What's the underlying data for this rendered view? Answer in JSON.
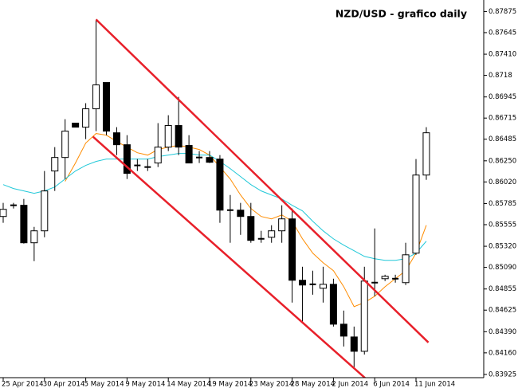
{
  "chart_data": {
    "type": "candlestick",
    "title": "NZD/USD - grafico daily",
    "categories": [
      "25 Apr 2014",
      null,
      null,
      null,
      "30 Apr 2014",
      null,
      null,
      null,
      "5 May 2014",
      null,
      null,
      null,
      "9 May 2014",
      null,
      null,
      null,
      "14 May 2014",
      null,
      null,
      null,
      "19 May 2014",
      null,
      null,
      null,
      "23 May 2014",
      null,
      null,
      null,
      "28 May 2014",
      null,
      null,
      null,
      "2 Jun 2014",
      null,
      null,
      null,
      "6 Jun 2014",
      null,
      null,
      null,
      "11 Jun 2014",
      null
    ],
    "open": [
      0.85644,
      0.85766,
      0.85766,
      0.85358,
      0.85488,
      0.86139,
      0.86286,
      0.8666,
      0.86616,
      0.86816,
      0.87102,
      0.86555,
      0.86425,
      0.862,
      0.86182,
      0.86226,
      0.86399,
      0.86634,
      0.86417,
      0.86286,
      0.86286,
      0.86269,
      0.85713,
      0.85713,
      0.85644,
      0.85401,
      0.85418,
      0.85488,
      0.85618,
      0.8495,
      0.84906,
      0.84863,
      0.84906,
      0.84472,
      0.84333,
      0.84177,
      0.84924,
      0.84967,
      0.84967,
      0.84924,
      0.85245,
      0.86095
    ],
    "high": [
      0.85792,
      0.85792,
      0.85835,
      0.85531,
      0.86139,
      0.86399,
      0.86703,
      0.8666,
      0.86877,
      0.87788,
      0.87102,
      0.86616,
      0.86529,
      0.86269,
      0.86269,
      0.8666,
      0.86746,
      0.86946,
      0.86529,
      0.86356,
      0.86356,
      0.86312,
      0.85878,
      0.85792,
      0.85792,
      0.85488,
      0.85549,
      0.85766,
      0.85731,
      0.85097,
      0.85054,
      0.85097,
      0.84967,
      0.8462,
      0.84446,
      0.85097,
      0.85514,
      0.8501,
      0.8501,
      0.85358,
      0.86269,
      0.86616
    ],
    "low": [
      0.85575,
      0.85731,
      0.85349,
      0.85158,
      0.85418,
      0.85922,
      0.86052,
      0.86616,
      0.86486,
      0.86573,
      0.86529,
      0.86312,
      0.86052,
      0.86139,
      0.86139,
      0.86182,
      0.86356,
      0.86312,
      0.86226,
      0.86226,
      0.86226,
      0.85575,
      0.85358,
      0.85444,
      0.85358,
      0.85358,
      0.85358,
      0.85358,
      0.84707,
      0.8449,
      0.84793,
      0.84707,
      0.84446,
      0.84229,
      0.83995,
      0.84142,
      0.84776,
      0.84941,
      0.84924,
      0.84898,
      0.85227,
      0.86043
    ],
    "close": [
      0.85722,
      0.85766,
      0.85358,
      0.85488,
      0.85922,
      0.86286,
      0.86573,
      0.86616,
      0.86816,
      0.87076,
      0.86573,
      0.86425,
      0.86113,
      0.862,
      0.86182,
      0.86399,
      0.86634,
      0.86399,
      0.86226,
      0.86286,
      0.86234,
      0.85713,
      0.85713,
      0.85644,
      0.85384,
      0.85401,
      0.85488,
      0.85618,
      0.8495,
      0.84898,
      0.84906,
      0.84906,
      0.84472,
      0.84342,
      0.84177,
      0.84941,
      0.84924,
      0.84993,
      0.84967,
      0.85227,
      0.86095,
      0.86555
    ],
    "series": [
      {
        "color": "#ff8c00",
        "values": [
          null,
          null,
          null,
          null,
          null,
          null,
          0.86026,
          0.86226,
          0.86443,
          0.86547,
          0.86529,
          0.8646,
          0.86399,
          0.86338,
          0.86312,
          0.86373,
          0.86399,
          0.86417,
          0.86399,
          0.86373,
          0.86312,
          0.86182,
          0.86052,
          0.85878,
          0.85731,
          0.85644,
          0.85618,
          0.85661,
          0.85592,
          0.85401,
          0.85245,
          0.85141,
          0.85054,
          0.8488,
          0.84663,
          0.84707,
          0.84776,
          0.8488,
          0.84967,
          0.85054,
          0.85245,
          0.85549
        ]
      },
      {
        "color": "#20c8d8",
        "values": [
          0.85991,
          0.85948,
          0.85922,
          0.85896,
          0.85922,
          0.85965,
          0.86052,
          0.86139,
          0.862,
          0.86243,
          0.86269,
          0.86269,
          0.86269,
          0.86269,
          0.86269,
          0.86295,
          0.86312,
          0.8633,
          0.8633,
          0.86312,
          0.86312,
          0.86243,
          0.86165,
          0.86078,
          0.85991,
          0.85922,
          0.85878,
          0.85835,
          0.85766,
          0.85705,
          0.85592,
          0.85488,
          0.85401,
          0.85332,
          0.85271,
          0.8521,
          0.85184,
          0.85167,
          0.85167,
          0.85184,
          0.85245,
          0.85375
        ]
      }
    ],
    "trendlines": [
      {
        "color": "#e8202a",
        "x": [
          9,
          41.2
        ],
        "y": [
          0.87788,
          0.84273
        ]
      },
      {
        "color": "#e8202a",
        "x": [
          8.7,
          35.2
        ],
        "y": [
          0.86512,
          0.83873
        ]
      }
    ],
    "ylim": [
      0.8389,
      0.88
    ],
    "yticks": [
      0.87875,
      0.87645,
      {
        "value": 0.8741,
        "label": "0.87410"
      },
      0.8718,
      0.86945,
      0.86715,
      0.86485,
      {
        "value": 0.8625,
        "label": "0.86250"
      },
      {
        "value": 0.8602,
        "label": "0.86020"
      },
      0.85785,
      0.85555,
      {
        "value": 0.8532,
        "label": "0.85320"
      },
      {
        "value": 0.8509,
        "label": "0.85090"
      },
      0.84855,
      0.84625,
      {
        "value": 0.8439,
        "label": "0.84390"
      },
      {
        "value": 0.8416,
        "label": "0.84160"
      },
      0.83925
    ],
    "bull_color": "#ffffff",
    "bear_color": "#000000"
  }
}
